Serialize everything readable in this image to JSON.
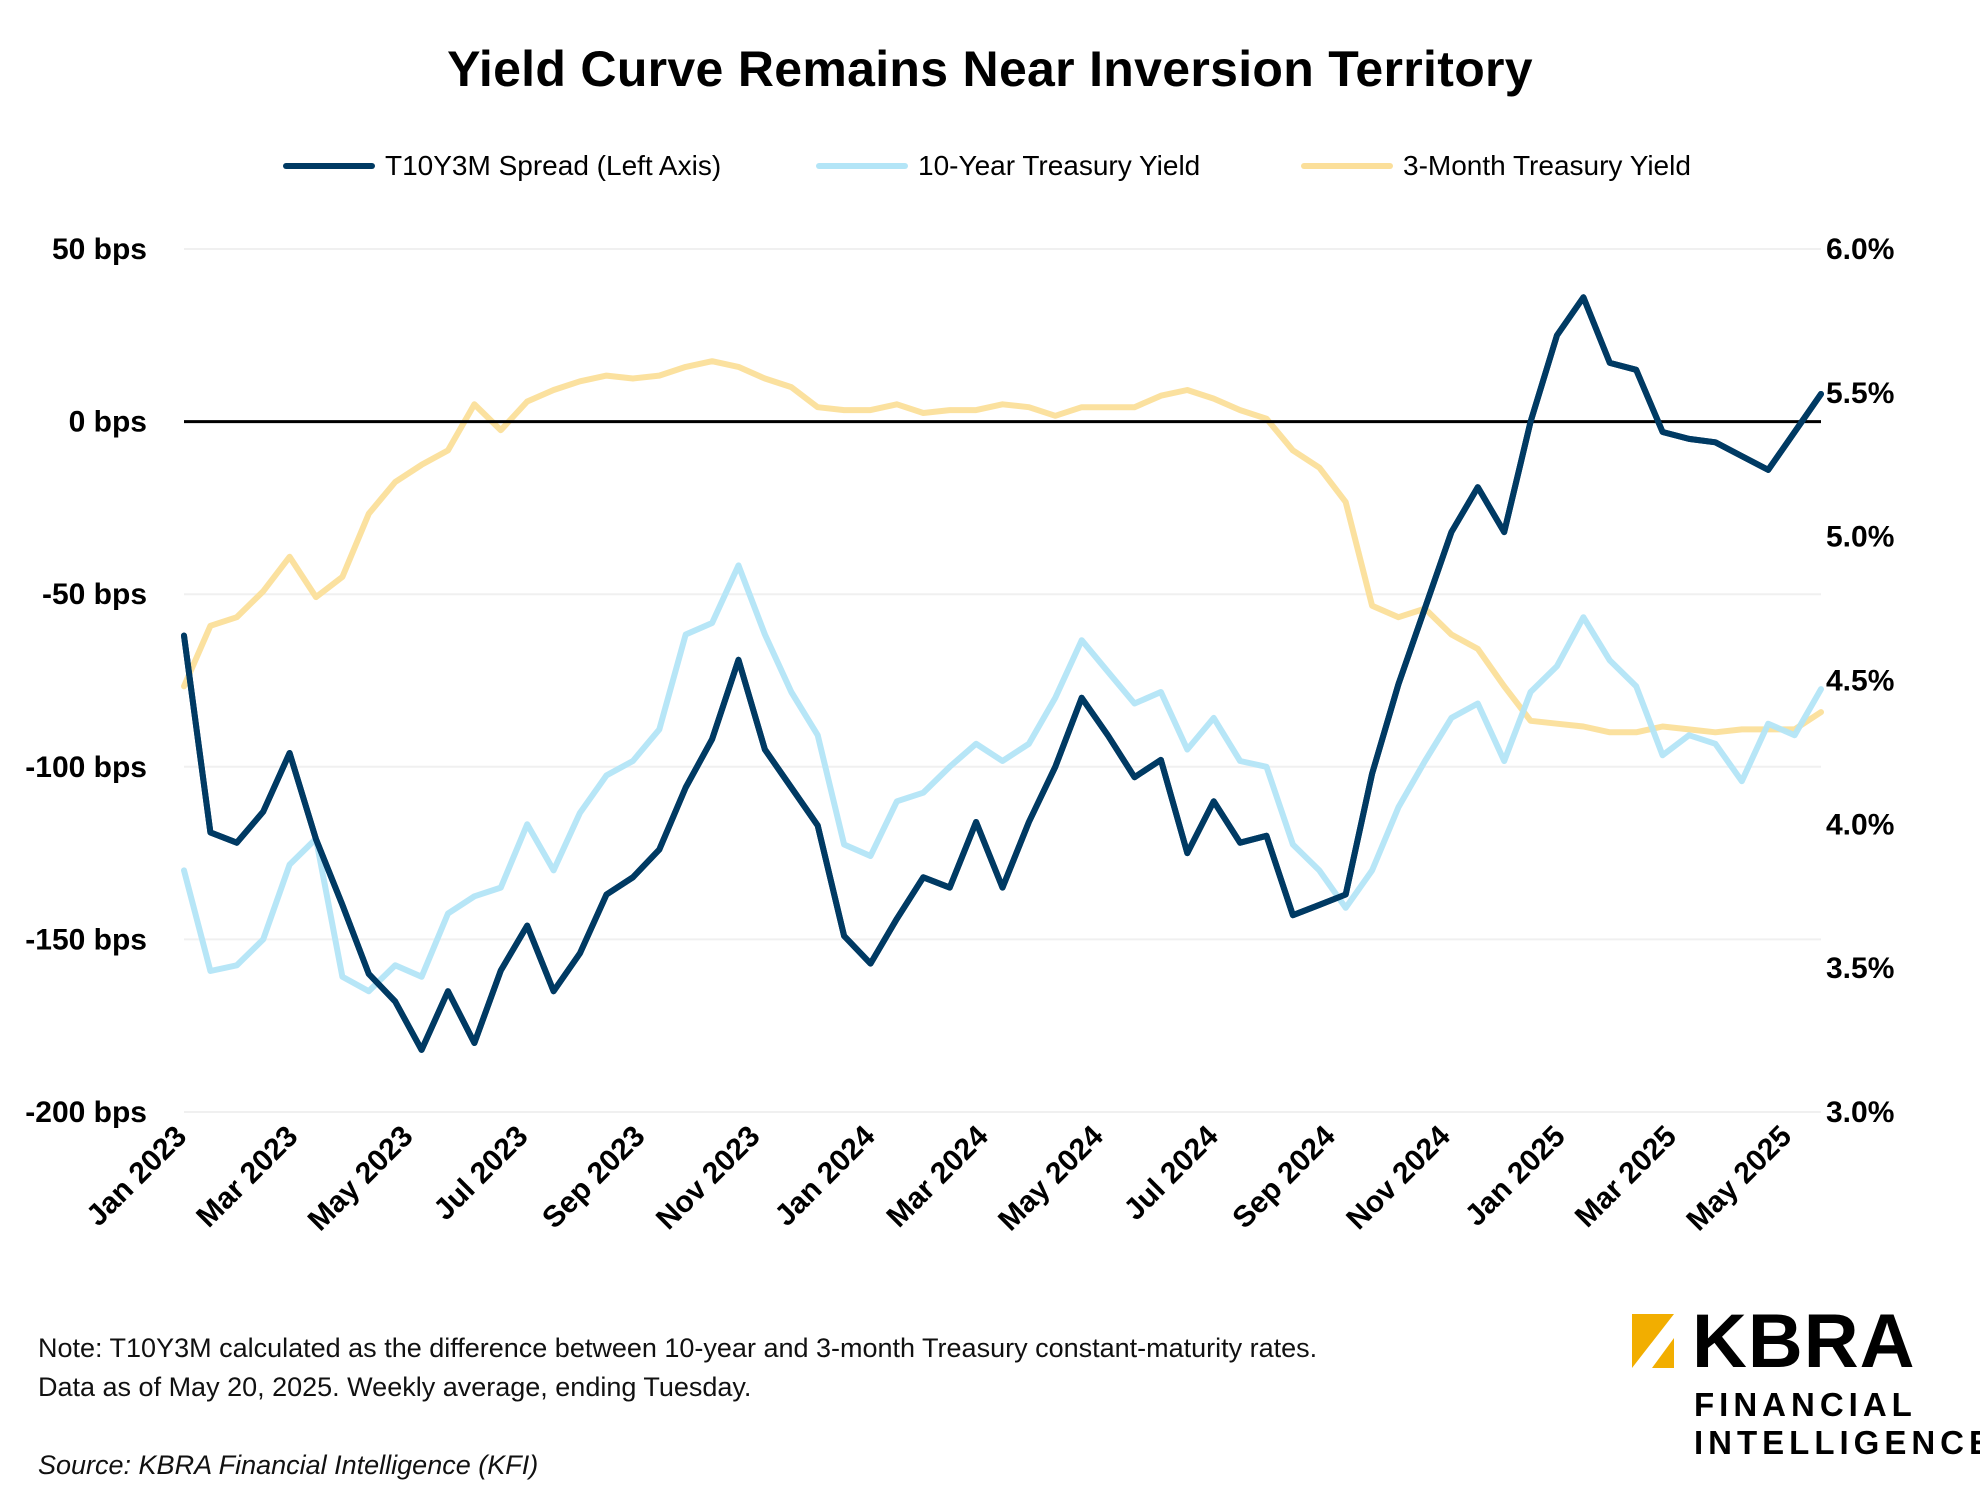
{
  "chart_data": {
    "type": "line",
    "title": "Yield Curve Remains Near Inversion Territory",
    "x_start": "2023-01-03",
    "x_end": "2025-05-20",
    "x_step_days": 14,
    "left_axis": {
      "label_suffix": " bps",
      "ylim": [
        -200,
        50
      ],
      "ticks": [
        50,
        0,
        -50,
        -100,
        -150,
        -200
      ],
      "tick_labels": [
        "50 bps",
        "0 bps",
        "-50 bps",
        "-100 bps",
        "-150 bps",
        "-200 bps"
      ]
    },
    "right_axis": {
      "ylim": [
        3.0,
        6.0
      ],
      "ticks": [
        6.0,
        5.5,
        5.0,
        4.5,
        4.0,
        3.5,
        3.0
      ],
      "tick_labels": [
        "6.0%",
        "5.5%",
        "5.0%",
        "4.5%",
        "4.0%",
        "3.5%",
        "3.0%"
      ]
    },
    "x_ticks": [
      "2023-01-01",
      "2023-03-01",
      "2023-05-01",
      "2023-07-01",
      "2023-09-01",
      "2023-11-01",
      "2024-01-01",
      "2024-03-01",
      "2024-05-01",
      "2024-07-01",
      "2024-09-01",
      "2024-11-01",
      "2025-01-01",
      "2025-03-01",
      "2025-05-01"
    ],
    "x_tick_labels": [
      "Jan 2023",
      "Mar 2023",
      "May 2023",
      "Jul 2023",
      "Sep 2023",
      "Nov 2023",
      "Jan 2024",
      "Mar 2024",
      "May 2024",
      "Jul 2024",
      "Sep 2024",
      "Nov 2024",
      "Jan 2025",
      "Mar 2025",
      "May 2025"
    ],
    "grid": true,
    "legend_position": "top-center",
    "series": [
      {
        "name": "T10Y3M Spread (Left Axis)",
        "axis": "left",
        "color": "#003A63",
        "values": [
          -62,
          -119,
          -122,
          -113,
          -96,
          -121,
          -140,
          -160,
          -168,
          -182,
          -165,
          -180,
          -159,
          -146,
          -165,
          -154,
          -137,
          -132,
          -124,
          -106,
          -92,
          -69,
          -95,
          -106,
          -117,
          -149,
          -157,
          -144,
          -132,
          -135,
          -116,
          -135,
          -116,
          -100,
          -80,
          -91,
          -103,
          -98,
          -125,
          -110,
          -122,
          -120,
          -143,
          -140,
          -137,
          -102,
          -76,
          -54,
          -32,
          -19,
          -32,
          0,
          25,
          36,
          17,
          15,
          -3,
          -5,
          -6,
          -10,
          -14,
          -3,
          8
        ]
      },
      {
        "name": "10-Year Treasury Yield",
        "axis": "right",
        "color": "#B3E5F7",
        "values": [
          3.84,
          3.49,
          3.51,
          3.6,
          3.86,
          3.95,
          3.47,
          3.42,
          3.51,
          3.47,
          3.69,
          3.75,
          3.78,
          4.0,
          3.84,
          4.04,
          4.17,
          4.22,
          4.33,
          4.66,
          4.7,
          4.9,
          4.66,
          4.46,
          4.31,
          3.93,
          3.89,
          4.08,
          4.11,
          4.2,
          4.28,
          4.22,
          4.28,
          4.44,
          4.64,
          4.53,
          4.42,
          4.46,
          4.26,
          4.37,
          4.22,
          4.2,
          3.93,
          3.84,
          3.71,
          3.84,
          4.06,
          4.22,
          4.37,
          4.42,
          4.22,
          4.46,
          4.55,
          4.72,
          4.57,
          4.48,
          4.24,
          4.31,
          4.28,
          4.15,
          4.35,
          4.31,
          4.47
        ]
      },
      {
        "name": "3-Month Treasury Yield",
        "axis": "right",
        "color": "#FBDF9A",
        "values": [
          4.48,
          4.69,
          4.72,
          4.81,
          4.93,
          4.79,
          4.86,
          5.08,
          5.19,
          5.25,
          5.3,
          5.46,
          5.37,
          5.47,
          5.51,
          5.54,
          5.56,
          5.55,
          5.56,
          5.59,
          5.61,
          5.59,
          5.55,
          5.52,
          5.45,
          5.44,
          5.44,
          5.46,
          5.43,
          5.44,
          5.44,
          5.46,
          5.45,
          5.42,
          5.45,
          5.45,
          5.45,
          5.49,
          5.51,
          5.48,
          5.44,
          5.41,
          5.3,
          5.24,
          5.12,
          4.76,
          4.72,
          4.75,
          4.66,
          4.61,
          4.48,
          4.36,
          4.35,
          4.34,
          4.32,
          4.32,
          4.34,
          4.33,
          4.32,
          4.33,
          4.33,
          4.33,
          4.39
        ]
      }
    ]
  },
  "footer": {
    "note_line1": "Note: T10Y3M calculated as the difference between 10-year and 3-month Treasury constant-maturity rates.",
    "note_line2": "Data as of May 20, 2025. Weekly average, ending Tuesday.",
    "source": "Source: KBRA Financial Intelligence (KFI)"
  },
  "logo": {
    "brand": "KBRA",
    "line1": "FINANCIAL",
    "line2": "INTELLIGENCE",
    "accent": "#F2AE00"
  }
}
